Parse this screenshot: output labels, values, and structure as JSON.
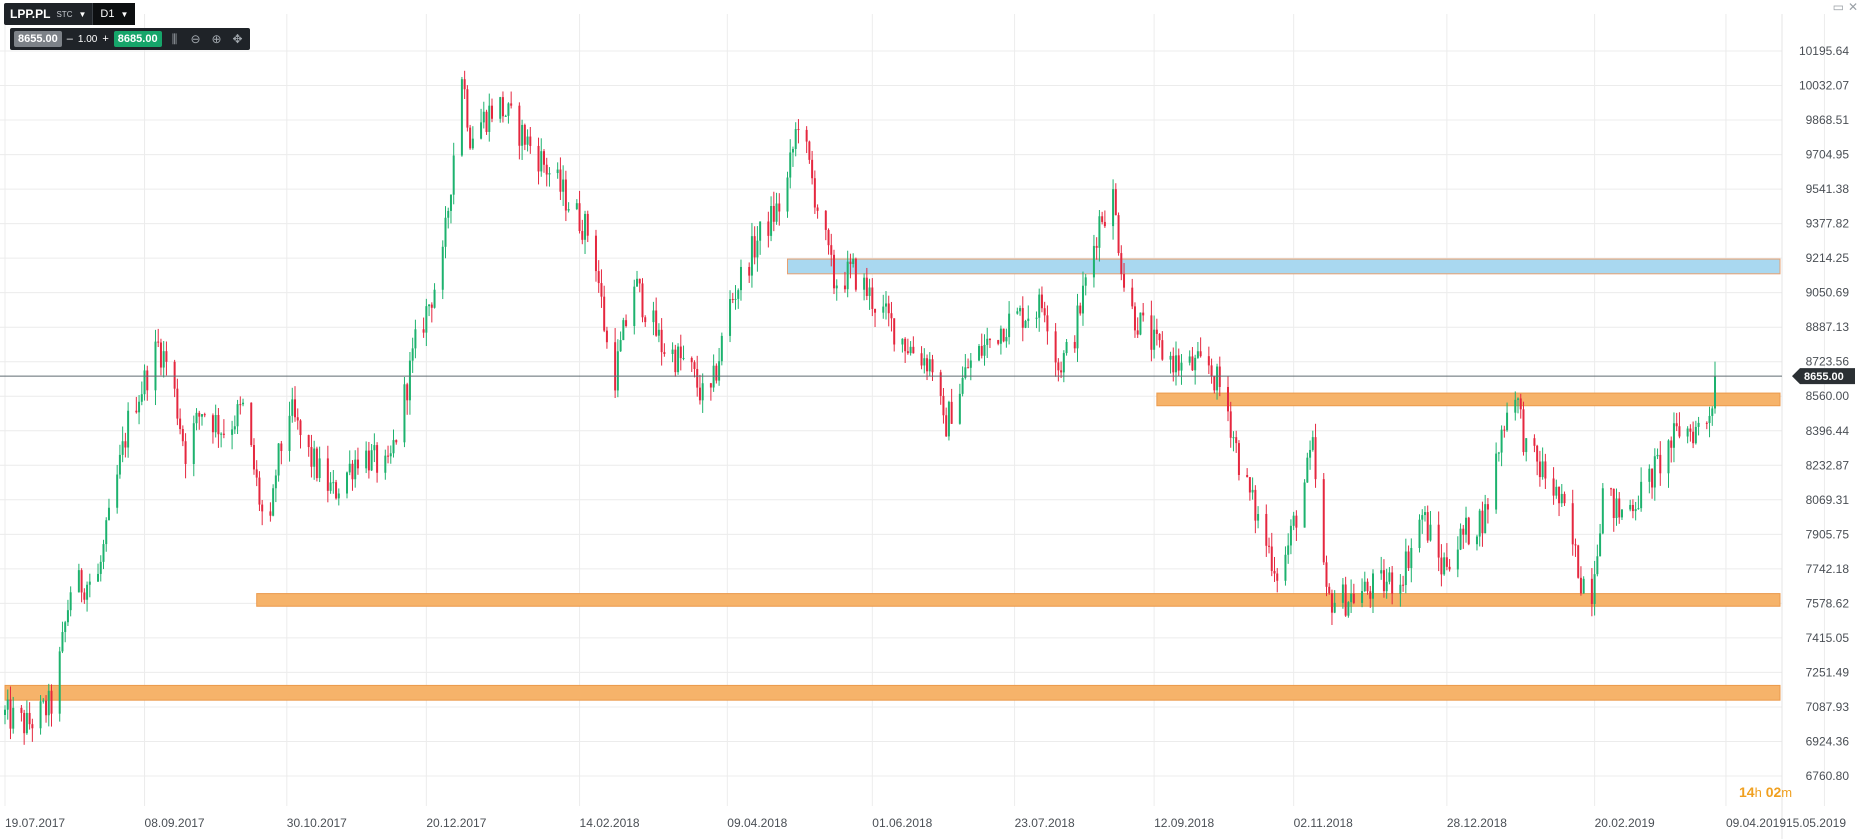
{
  "instrument": {
    "symbol": "LPP.PL",
    "market": "STC",
    "timeframe": "D1"
  },
  "trade_panel": {
    "bid": "8655.00",
    "minus": "–",
    "quantity": "1.00",
    "plus": "+",
    "ask": "8685.00"
  },
  "countdown": {
    "hours": "14",
    "h_unit": "h",
    "minutes": "02",
    "m_unit": "m"
  },
  "colors": {
    "up": "#1db26e",
    "down": "#e5273f",
    "zone_orange": "#f6b36a",
    "zone_blue": "#a9d8f0",
    "price_line": "#5f6b72"
  },
  "chart_data": {
    "type": "candlestick",
    "ylim": [
      6760.8,
      10300
    ],
    "y_ticks": [
      "10195.64",
      "10032.07",
      "9868.51",
      "9704.95",
      "9541.38",
      "9377.82",
      "9214.25",
      "9050.69",
      "8887.13",
      "8723.56",
      "8560.00",
      "8396.44",
      "8232.87",
      "8069.31",
      "7905.75",
      "7742.18",
      "7578.62",
      "7415.05",
      "7251.49",
      "7087.93",
      "6924.36",
      "6760.80"
    ],
    "x_ticks": [
      {
        "label": "19.07.2017",
        "day": 0
      },
      {
        "label": "08.09.2017",
        "day": 51
      },
      {
        "label": "30.10.2017",
        "day": 103
      },
      {
        "label": "20.12.2017",
        "day": 154
      },
      {
        "label": "14.02.2018",
        "day": 210
      },
      {
        "label": "09.04.2018",
        "day": 264
      },
      {
        "label": "01.06.2018",
        "day": 317
      },
      {
        "label": "23.07.2018",
        "day": 369
      },
      {
        "label": "12.09.2018",
        "day": 420
      },
      {
        "label": "02.11.2018",
        "day": 471
      },
      {
        "label": "28.12.2018",
        "day": 527
      },
      {
        "label": "20.02.2019",
        "day": 581
      },
      {
        "label": "09.04.2019",
        "day": 629
      },
      {
        "label": "15.05.2019",
        "day": 665
      }
    ],
    "current_price": "8655.00",
    "current_price_value": 8655.0,
    "zones": [
      {
        "color": "blue",
        "from_date": "01.05.2018",
        "to_date": "15.05.2019",
        "low": 9140,
        "high": 9210
      },
      {
        "color": "orange",
        "from_date": "13.09.2018",
        "to_date": "15.05.2019",
        "low": 8515,
        "high": 8575
      },
      {
        "color": "orange",
        "from_date": "19.10.2017",
        "to_date": "15.05.2019",
        "low": 7565,
        "high": 7625
      },
      {
        "color": "orange",
        "from_date": "19.07.2017",
        "to_date": "15.05.2019",
        "low": 7120,
        "high": 7190
      }
    ],
    "path_keys": [
      [
        0,
        7050
      ],
      [
        8,
        7000
      ],
      [
        17,
        7100
      ],
      [
        20,
        7300
      ],
      [
        24,
        7650
      ],
      [
        34,
        7700
      ],
      [
        40,
        8100
      ],
      [
        46,
        8500
      ],
      [
        50,
        8600
      ],
      [
        56,
        8800
      ],
      [
        60,
        8700
      ],
      [
        66,
        8300
      ],
      [
        72,
        8500
      ],
      [
        80,
        8400
      ],
      [
        87,
        8500
      ],
      [
        94,
        8000
      ],
      [
        95,
        7650
      ],
      [
        99,
        8200
      ],
      [
        104,
        8500
      ],
      [
        110,
        8300
      ],
      [
        120,
        8100
      ],
      [
        130,
        8300
      ],
      [
        140,
        8200
      ],
      [
        150,
        8800
      ],
      [
        160,
        9200
      ],
      [
        167,
        10100
      ],
      [
        170,
        9800
      ],
      [
        180,
        9950
      ],
      [
        195,
        9700
      ],
      [
        205,
        9500
      ],
      [
        215,
        9300
      ],
      [
        222,
        8600
      ],
      [
        230,
        9100
      ],
      [
        240,
        8800
      ],
      [
        250,
        8700
      ],
      [
        257,
        8500
      ],
      [
        265,
        9000
      ],
      [
        275,
        9300
      ],
      [
        285,
        9500
      ],
      [
        290,
        9880
      ],
      [
        298,
        9400
      ],
      [
        303,
        9100
      ],
      [
        310,
        9150
      ],
      [
        318,
        9000
      ],
      [
        330,
        8800
      ],
      [
        340,
        8700
      ],
      [
        343,
        8400
      ],
      [
        352,
        8700
      ],
      [
        365,
        8900
      ],
      [
        380,
        9000
      ],
      [
        385,
        8700
      ],
      [
        390,
        8800
      ],
      [
        400,
        9400
      ],
      [
        405,
        9500
      ],
      [
        410,
        9000
      ],
      [
        415,
        8900
      ],
      [
        420,
        8800
      ],
      [
        430,
        8700
      ],
      [
        440,
        8700
      ],
      [
        446,
        8550
      ],
      [
        452,
        8200
      ],
      [
        460,
        7900
      ],
      [
        466,
        7700
      ],
      [
        472,
        8000
      ],
      [
        478,
        8300
      ],
      [
        483,
        7600
      ],
      [
        490,
        7600
      ],
      [
        500,
        7650
      ],
      [
        510,
        7700
      ],
      [
        518,
        8000
      ],
      [
        525,
        7750
      ],
      [
        533,
        7900
      ],
      [
        541,
        8000
      ],
      [
        548,
        8450
      ],
      [
        552,
        8600
      ],
      [
        556,
        8300
      ],
      [
        565,
        8150
      ],
      [
        570,
        8000
      ],
      [
        576,
        7700
      ],
      [
        580,
        7650
      ],
      [
        584,
        8100
      ],
      [
        590,
        8000
      ],
      [
        598,
        8100
      ],
      [
        605,
        8250
      ],
      [
        612,
        8400
      ],
      [
        618,
        8400
      ],
      [
        622,
        8450
      ],
      [
        626,
        8655
      ]
    ]
  }
}
